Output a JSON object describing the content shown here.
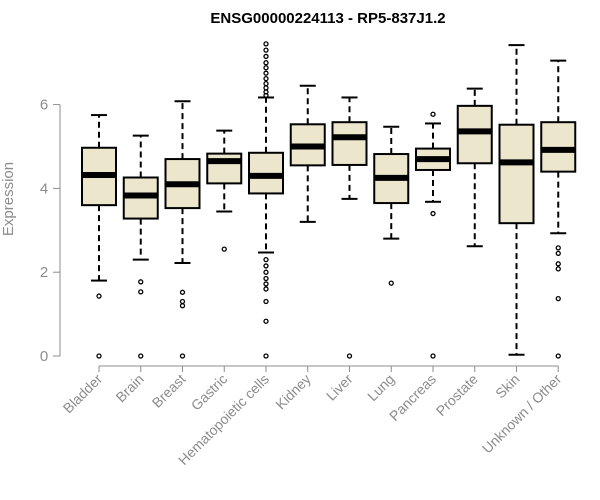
{
  "chart_data": {
    "type": "box",
    "title": "ENSG00000224113 - RP5-837J1.2",
    "xlabel": "",
    "ylabel": "Expression",
    "ylim": [
      0,
      7.5
    ],
    "yticks": [
      0,
      2,
      4,
      6
    ],
    "grid": false,
    "legend": "none",
    "box_fill": "#ece6cd",
    "categories": [
      "Bladder",
      "Brain",
      "Breast",
      "Gastric",
      "Hematopoietic cells",
      "Kidney",
      "Liver",
      "Lung",
      "Pancreas",
      "Prostate",
      "Skin",
      "Unknown / Other"
    ],
    "boxes": [
      {
        "category": "Bladder",
        "whisker_low": 1.8,
        "q1": 3.6,
        "median": 4.32,
        "q3": 4.97,
        "whisker_high": 5.75,
        "outliers": [
          1.43,
          0.0
        ]
      },
      {
        "category": "Brain",
        "whisker_low": 2.3,
        "q1": 3.28,
        "median": 3.83,
        "q3": 4.26,
        "whisker_high": 5.26,
        "outliers": [
          1.77,
          1.53,
          0.0
        ]
      },
      {
        "category": "Breast",
        "whisker_low": 2.22,
        "q1": 3.53,
        "median": 4.1,
        "q3": 4.7,
        "whisker_high": 6.08,
        "outliers": [
          1.52,
          1.3,
          1.2,
          0.0
        ]
      },
      {
        "category": "Gastric",
        "whisker_low": 3.45,
        "q1": 4.12,
        "median": 4.65,
        "q3": 4.83,
        "whisker_high": 5.38,
        "outliers": [
          2.55
        ]
      },
      {
        "category": "Hematopoietic cells",
        "whisker_low": 2.47,
        "q1": 3.88,
        "median": 4.3,
        "q3": 4.85,
        "whisker_high": 6.17,
        "outliers": [
          7.45,
          7.3,
          7.15,
          7.0,
          6.88,
          6.75,
          6.62,
          6.5,
          6.4,
          6.3,
          6.22,
          2.3,
          2.15,
          2.0,
          1.85,
          1.72,
          1.6,
          1.3,
          0.83,
          0.0
        ]
      },
      {
        "category": "Kidney",
        "whisker_low": 3.2,
        "q1": 4.55,
        "median": 5.0,
        "q3": 5.53,
        "whisker_high": 6.45,
        "outliers": []
      },
      {
        "category": "Liver",
        "whisker_low": 3.75,
        "q1": 4.56,
        "median": 5.22,
        "q3": 5.58,
        "whisker_high": 6.17,
        "outliers": [
          0.0
        ]
      },
      {
        "category": "Lung",
        "whisker_low": 2.8,
        "q1": 3.65,
        "median": 4.25,
        "q3": 4.82,
        "whisker_high": 5.47,
        "outliers": [
          1.74
        ]
      },
      {
        "category": "Pancreas",
        "whisker_low": 3.68,
        "q1": 4.44,
        "median": 4.7,
        "q3": 4.95,
        "whisker_high": 5.55,
        "outliers": [
          5.77,
          3.4,
          0.0
        ]
      },
      {
        "category": "Prostate",
        "whisker_low": 2.62,
        "q1": 4.6,
        "median": 5.36,
        "q3": 5.97,
        "whisker_high": 6.38,
        "outliers": []
      },
      {
        "category": "Skin",
        "whisker_low": 0.03,
        "q1": 3.17,
        "median": 4.62,
        "q3": 5.52,
        "whisker_high": 7.42,
        "outliers": []
      },
      {
        "category": "Unknown / Other",
        "whisker_low": 2.93,
        "q1": 4.4,
        "median": 4.92,
        "q3": 5.58,
        "whisker_high": 7.05,
        "outliers": [
          2.58,
          2.45,
          2.2,
          2.08,
          1.37,
          0.0
        ]
      }
    ]
  }
}
